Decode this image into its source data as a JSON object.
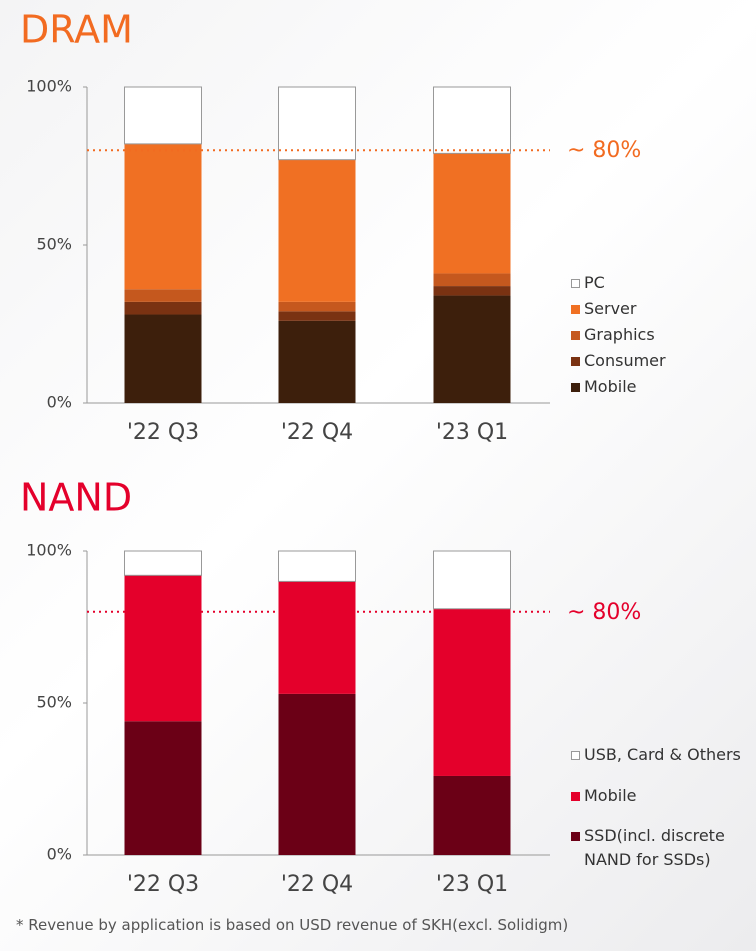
{
  "chart_data": [
    {
      "type": "stacked-bar",
      "title": "DRAM",
      "title_color": "#f26b21",
      "categories": [
        "'22 Q3",
        "'22 Q4",
        "'23 Q1"
      ],
      "series": [
        {
          "name": "Mobile",
          "color": "#3d1f0c",
          "values": [
            28,
            26,
            34
          ]
        },
        {
          "name": "Consumer",
          "color": "#7a3212",
          "values": [
            4,
            3,
            3
          ]
        },
        {
          "name": "Graphics",
          "color": "#c5581e",
          "values": [
            4,
            3,
            4
          ]
        },
        {
          "name": "Server",
          "color": "#f07023",
          "values": [
            46,
            45,
            38
          ]
        },
        {
          "name": "PC",
          "color": "#ffffff",
          "values": [
            18,
            23,
            21
          ]
        }
      ],
      "ylim": [
        0,
        100
      ],
      "yticks": [
        {
          "value": 0,
          "label": "0%"
        },
        {
          "value": 50,
          "label": "50%"
        },
        {
          "value": 100,
          "label": "100%"
        }
      ],
      "reference_line": {
        "value": 80,
        "label": "~ 80%"
      }
    },
    {
      "type": "stacked-bar",
      "title": "NAND",
      "title_color": "#e4002b",
      "categories": [
        "'22 Q3",
        "'22 Q4",
        "'23 Q1"
      ],
      "series": [
        {
          "name": "SSD(incl. discrete NAND for SSDs)",
          "color": "#6b0016",
          "values": [
            44,
            53,
            26
          ]
        },
        {
          "name": "Mobile",
          "color": "#e4002b",
          "values": [
            48,
            37,
            55
          ]
        },
        {
          "name": "USB, Card & Others",
          "color": "#ffffff",
          "values": [
            8,
            10,
            19
          ]
        }
      ],
      "ylim": [
        0,
        100
      ],
      "yticks": [
        {
          "value": 0,
          "label": "0%"
        },
        {
          "value": 50,
          "label": "50%"
        },
        {
          "value": 100,
          "label": "100%"
        }
      ],
      "reference_line": {
        "value": 80,
        "label": "~ 80%"
      }
    }
  ],
  "footnote": "* Revenue by application is based on USD revenue of SKH(excl. Solidigm)"
}
